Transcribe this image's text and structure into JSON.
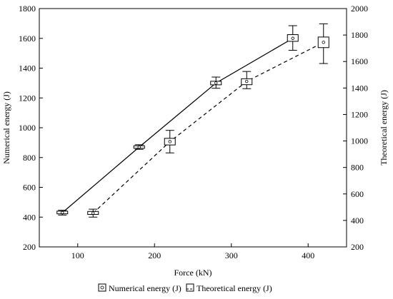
{
  "chart_data": {
    "type": "line",
    "xlabel": "Force (kN)",
    "ylabel_left": "Numerical energy (J)",
    "ylabel_right": "Theoretical energy (J)",
    "xlim": [
      50,
      450
    ],
    "ylim_left": [
      200,
      1800
    ],
    "ylim_right": [
      200,
      2000
    ],
    "x_ticks": [
      100,
      200,
      300,
      400
    ],
    "y_ticks_left": [
      200,
      400,
      600,
      800,
      1000,
      1200,
      1400,
      1600,
      1800
    ],
    "y_ticks_right": [
      200,
      400,
      600,
      800,
      1000,
      1200,
      1400,
      1600,
      1800,
      2000
    ],
    "grid": false,
    "legend_position": "bottom-center",
    "series": [
      {
        "name": "Numerical energy (J)",
        "axis": "left",
        "line_style": "solid",
        "color": "#000000",
        "points": [
          {
            "x": 80,
            "y": 430,
            "box": [
              422,
              440
            ],
            "whisker": [
              414,
              446
            ]
          },
          {
            "x": 180,
            "y": 870,
            "box": [
              862,
              879
            ],
            "whisker": [
              855,
              886
            ]
          },
          {
            "x": 280,
            "y": 1300,
            "box": [
              1288,
              1312
            ],
            "whisker": [
              1265,
              1340
            ]
          },
          {
            "x": 380,
            "y": 1600,
            "box": [
              1580,
              1625
            ],
            "whisker": [
              1520,
              1685
            ]
          }
        ]
      },
      {
        "name": "Theoretical energy (J)",
        "axis": "right",
        "line_style": "dashed",
        "color": "#000000",
        "points": [
          {
            "x": 120,
            "y": 455,
            "box": [
              445,
              468
            ],
            "whisker": [
              425,
              485
            ]
          },
          {
            "x": 220,
            "y": 995,
            "box": [
              970,
              1020
            ],
            "whisker": [
              910,
              1080
            ]
          },
          {
            "x": 320,
            "y": 1450,
            "box": [
              1425,
              1470
            ],
            "whisker": [
              1395,
              1525
            ]
          },
          {
            "x": 420,
            "y": 1745,
            "box": [
              1705,
              1785
            ],
            "whisker": [
              1585,
              1885
            ]
          }
        ]
      }
    ]
  }
}
